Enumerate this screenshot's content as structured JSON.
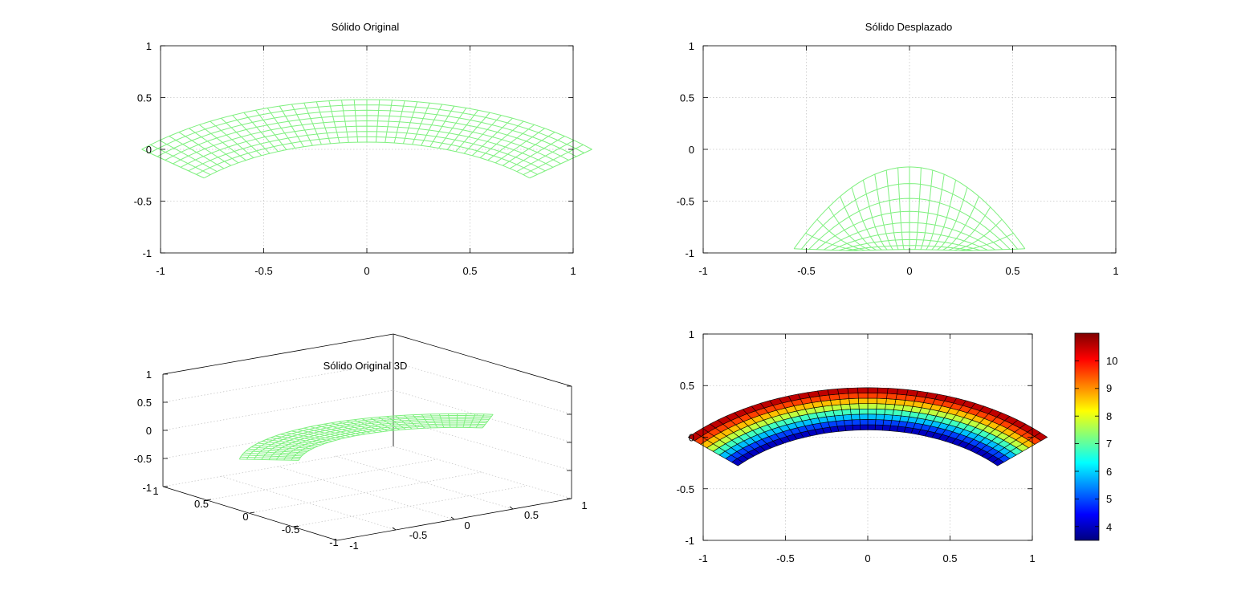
{
  "figure": {
    "colors": {
      "mesh": "#7ff07f",
      "grid": "#c8c8c8",
      "axis": "#000000",
      "background": "#ffffff"
    }
  },
  "chart_data": [
    {
      "type": "wireframe-2d",
      "title": "Sólido Original",
      "xlabel": "",
      "ylabel": "",
      "xlim": [
        -1,
        1
      ],
      "ylim": [
        -1,
        1
      ],
      "xticks": [
        "-1",
        "-0.5",
        "0",
        "0.5",
        "1"
      ],
      "yticks": [
        "1",
        "0.5",
        "0",
        "-0.5",
        "-1"
      ],
      "grid": true,
      "geometry": {
        "shape": "annular-sector",
        "center": [
          0,
          -1
        ],
        "r_inner": 1.07,
        "r_outer": 1.48,
        "theta_deg": [
          42.5,
          137.5
        ],
        "radial_divisions": 8,
        "angular_divisions": 40
      }
    },
    {
      "type": "wireframe-2d",
      "title": "Sólido Desplazado",
      "xlabel": "",
      "ylabel": "",
      "xlim": [
        -1,
        1
      ],
      "ylim": [
        -1,
        1
      ],
      "xticks": [
        "-1",
        "-0.5",
        "0",
        "0.5",
        "1"
      ],
      "yticks": [
        "1",
        "0.5",
        "0",
        "-0.5",
        "-1"
      ],
      "grid": true,
      "deformed_outline": {
        "outer_top": [
          [
            -0.56,
            -0.96
          ],
          [
            -0.3,
            -0.52
          ],
          [
            -0.1,
            -0.23
          ],
          [
            0,
            -0.17
          ],
          [
            0.1,
            -0.23
          ],
          [
            0.3,
            -0.52
          ],
          [
            0.56,
            -0.96
          ]
        ],
        "inner_bottom": [
          [
            -0.27,
            -0.98
          ],
          [
            0,
            -0.93
          ],
          [
            0.27,
            -0.98
          ]
        ]
      }
    },
    {
      "type": "wireframe-3d",
      "title": "Sólido Original 3D",
      "xlim": [
        -1,
        1
      ],
      "ylim": [
        -1,
        1
      ],
      "zlim": [
        -1,
        1
      ],
      "zticks": [
        "1",
        "0.5",
        "0",
        "-0.5",
        "-1"
      ],
      "yticks_left": [
        "1",
        "0.5",
        "0",
        "-0.5",
        "-1"
      ],
      "xticks_right": [
        "-1",
        "-0.5",
        "0",
        "0.5",
        "1"
      ],
      "grid": true
    },
    {
      "type": "heatmap-surface",
      "title": "",
      "xlim": [
        -1,
        1
      ],
      "ylim": [
        -1,
        1
      ],
      "xticks": [
        "-1",
        "-0.5",
        "0",
        "0.5",
        "1"
      ],
      "yticks": [
        "1",
        "0.5",
        "0",
        "-0.5",
        "-1"
      ],
      "grid": true,
      "colormap": "jet",
      "value_range": [
        3.5,
        11
      ],
      "colorbar_ticks": [
        "10",
        "9",
        "8",
        "7",
        "6",
        "5",
        "4"
      ],
      "field": "increases radially from inner edge (≈3.5) to outer edge (≈11)"
    }
  ]
}
